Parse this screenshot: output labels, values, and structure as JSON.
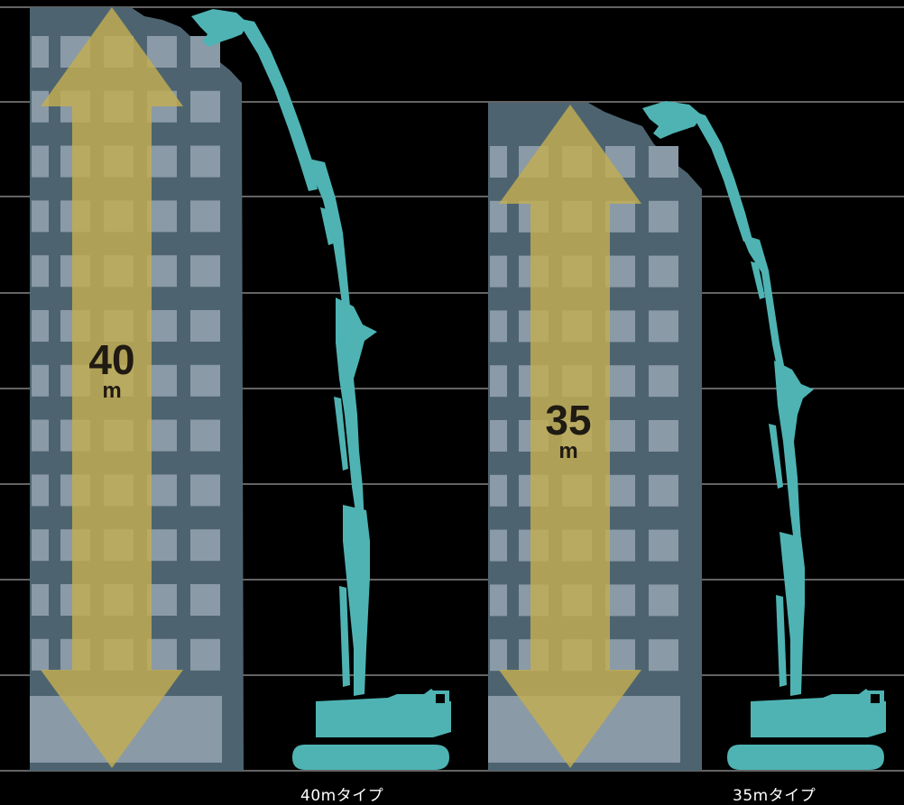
{
  "diagram": {
    "left": {
      "height_value": "40",
      "height_unit": "m",
      "caption": "40mタイプ"
    },
    "right": {
      "height_value": "35",
      "height_unit": "m",
      "caption": "35mタイプ"
    }
  },
  "colors": {
    "background": "#000000",
    "gridline": "#9a9a9a",
    "building": "#4d6470",
    "window": "#8a9aa6",
    "arrow": "#b8a75a",
    "machine": "#4fb3b3"
  }
}
